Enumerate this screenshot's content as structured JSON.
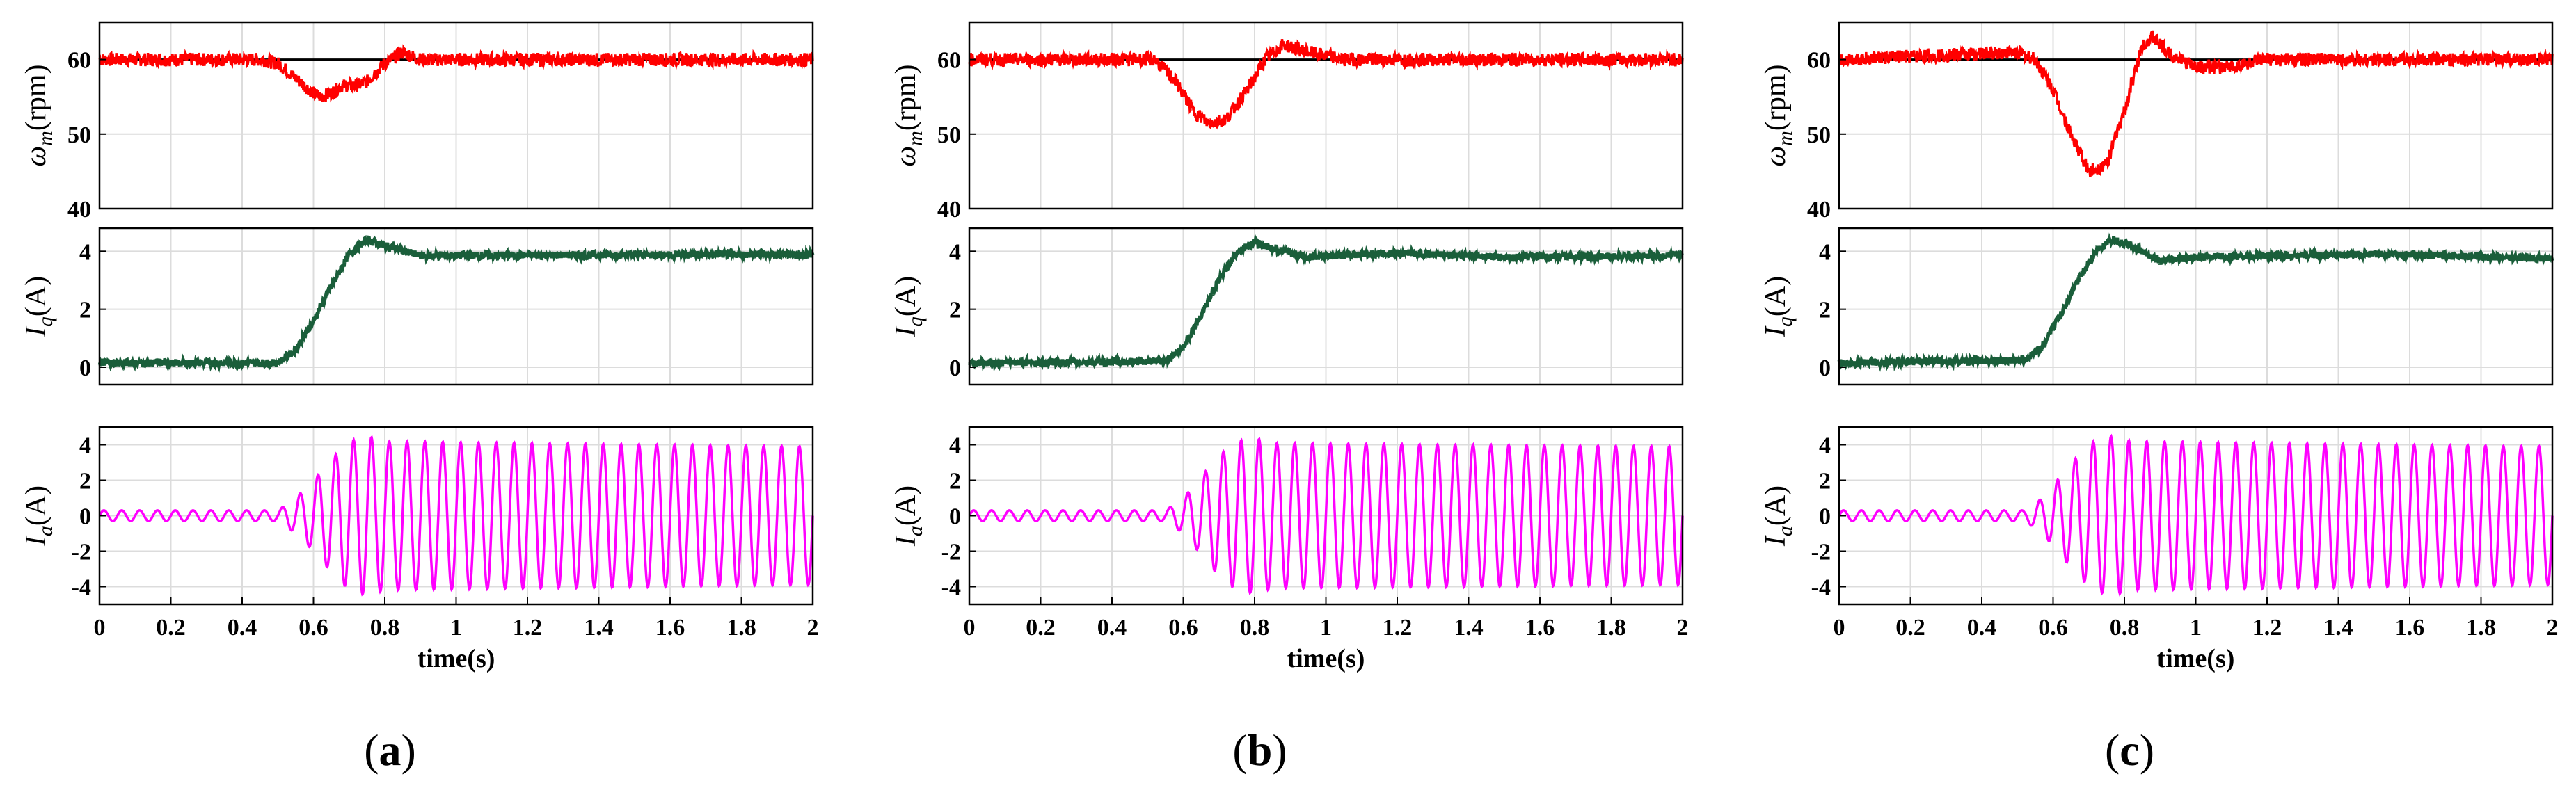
{
  "chart_data": [
    {
      "panel": "(a)",
      "type": "line",
      "caption_letter": "a",
      "xlabel": "time(s)",
      "xlim": [
        0,
        2
      ],
      "xticks": [
        "0",
        "0.2",
        "0.4",
        "0.6",
        "0.8",
        "1",
        "1.2",
        "1.4",
        "1.6",
        "1.8",
        "2"
      ],
      "grid": true,
      "subplots": [
        {
          "ylabel": "ω_m(rpm)",
          "ylim": [
            40,
            65
          ],
          "yticks": [
            40,
            50,
            60
          ],
          "color": "#ff0000",
          "series": [
            {
              "x": [
                0,
                0.45,
                0.5,
                0.55,
                0.6,
                0.62,
                0.65,
                0.68,
                0.72,
                0.75,
                0.8,
                0.85,
                0.9,
                1.0,
                2.0
              ],
              "y": [
                60,
                60,
                59.5,
                57.5,
                55.5,
                55,
                55.5,
                56.5,
                56.5,
                57,
                59.5,
                61,
                60,
                60,
                60
              ]
            }
          ],
          "reference": 60
        },
        {
          "ylabel": "I_q(A)",
          "ylim": [
            -0.6,
            4.8
          ],
          "yticks": [
            0,
            2,
            4
          ],
          "color": "#1a5e3a",
          "series": [
            {
              "x": [
                0,
                0.5,
                0.55,
                0.6,
                0.65,
                0.7,
                0.75,
                0.8,
                0.9,
                2.0
              ],
              "y": [
                0.15,
                0.15,
                0.6,
                1.6,
                2.8,
                3.9,
                4.4,
                4.2,
                3.85,
                3.9
              ]
            }
          ]
        },
        {
          "ylabel": "I_a(A)",
          "ylim": [
            -5,
            5
          ],
          "yticks": [
            -4,
            -2,
            0,
            2,
            4
          ],
          "color": "#ff00ff",
          "series": [
            {
              "type": "sinusoid",
              "frequency_hz": 20,
              "amplitude_x": [
                0,
                0.5,
                0.55,
                0.6,
                0.65,
                0.7,
                0.75,
                0.8,
                2.0
              ],
              "amplitude_y": [
                0.3,
                0.3,
                1.0,
                2.0,
                3.2,
                4.2,
                4.5,
                4.2,
                3.9
              ]
            }
          ]
        }
      ]
    },
    {
      "panel": "(b)",
      "type": "line",
      "caption_letter": "b",
      "xlabel": "time(s)",
      "xlim": [
        0,
        2
      ],
      "xticks": [
        "0",
        "0.2",
        "0.4",
        "0.6",
        "0.8",
        "1",
        "1.2",
        "1.4",
        "1.6",
        "1.8",
        "2"
      ],
      "grid": true,
      "subplots": [
        {
          "ylabel": "ω_m(rpm)",
          "ylim": [
            40,
            65
          ],
          "yticks": [
            40,
            50,
            60
          ],
          "color": "#ff0000",
          "series": [
            {
              "x": [
                0,
                0.52,
                0.58,
                0.63,
                0.67,
                0.72,
                0.78,
                0.83,
                0.88,
                0.95,
                1.05,
                2.0
              ],
              "y": [
                60,
                60,
                57,
                53,
                51.5,
                52,
                56,
                60,
                62,
                61,
                60,
                60
              ]
            }
          ],
          "reference": 60
        },
        {
          "ylabel": "I_q(A)",
          "ylim": [
            -0.6,
            4.8
          ],
          "yticks": [
            0,
            2,
            4
          ],
          "color": "#1a5e3a",
          "series": [
            {
              "x": [
                0,
                0.55,
                0.6,
                0.65,
                0.7,
                0.75,
                0.8,
                0.85,
                0.95,
                1.2,
                1.5,
                2.0
              ],
              "y": [
                0.15,
                0.2,
                0.7,
                1.8,
                3.0,
                4.0,
                4.3,
                4.1,
                3.8,
                3.95,
                3.8,
                3.85
              ]
            }
          ]
        },
        {
          "ylabel": "I_a(A)",
          "ylim": [
            -5,
            5
          ],
          "yticks": [
            -4,
            -2,
            0,
            2,
            4
          ],
          "color": "#ff00ff",
          "series": [
            {
              "type": "sinusoid",
              "frequency_hz": 20,
              "amplitude_x": [
                0,
                0.55,
                0.6,
                0.65,
                0.7,
                0.75,
                0.8,
                0.85,
                2.0
              ],
              "amplitude_y": [
                0.3,
                0.3,
                1.0,
                2.2,
                3.4,
                4.2,
                4.4,
                4.1,
                3.9
              ]
            }
          ]
        }
      ]
    },
    {
      "panel": "(c)",
      "type": "line",
      "caption_letter": "c",
      "xlabel": "time(s)",
      "xlim": [
        0,
        2
      ],
      "xticks": [
        "0",
        "0.2",
        "0.4",
        "0.6",
        "0.8",
        "1",
        "1.2",
        "1.4",
        "1.6",
        "1.8",
        "2"
      ],
      "grid": true,
      "subplots": [
        {
          "ylabel": "ω_m(rpm)",
          "ylim": [
            40,
            65
          ],
          "yticks": [
            40,
            50,
            60
          ],
          "color": "#ff0000",
          "series": [
            {
              "x": [
                0,
                0.5,
                0.55,
                0.6,
                0.65,
                0.7,
                0.75,
                0.8,
                0.85,
                0.88,
                0.92,
                1.0,
                1.1,
                1.2,
                2.0
              ],
              "y": [
                60,
                61,
                60,
                56,
                50,
                45,
                46,
                53,
                62,
                63,
                61,
                59,
                59,
                60,
                60
              ]
            }
          ],
          "reference": 60
        },
        {
          "ylabel": "I_q(A)",
          "ylim": [
            -0.6,
            4.8
          ],
          "yticks": [
            0,
            2,
            4
          ],
          "color": "#1a5e3a",
          "series": [
            {
              "x": [
                0,
                0.52,
                0.57,
                0.62,
                0.67,
                0.72,
                0.77,
                0.82,
                0.9,
                1.0,
                1.3,
                1.5,
                2.0
              ],
              "y": [
                0.15,
                0.25,
                0.7,
                1.8,
                3.0,
                4.0,
                4.4,
                4.2,
                3.65,
                3.8,
                3.85,
                3.9,
                3.75
              ]
            }
          ]
        },
        {
          "ylabel": "I_a(A)",
          "ylim": [
            -5,
            5
          ],
          "yticks": [
            -4,
            -2,
            0,
            2,
            4
          ],
          "color": "#ff00ff",
          "series": [
            {
              "type": "sinusoid",
              "frequency_hz": 20,
              "amplitude_x": [
                0,
                0.52,
                0.57,
                0.62,
                0.67,
                0.72,
                0.77,
                0.82,
                2.0
              ],
              "amplitude_y": [
                0.3,
                0.3,
                1.0,
                2.2,
                3.4,
                4.3,
                4.5,
                4.2,
                3.9
              ]
            }
          ]
        }
      ]
    }
  ]
}
